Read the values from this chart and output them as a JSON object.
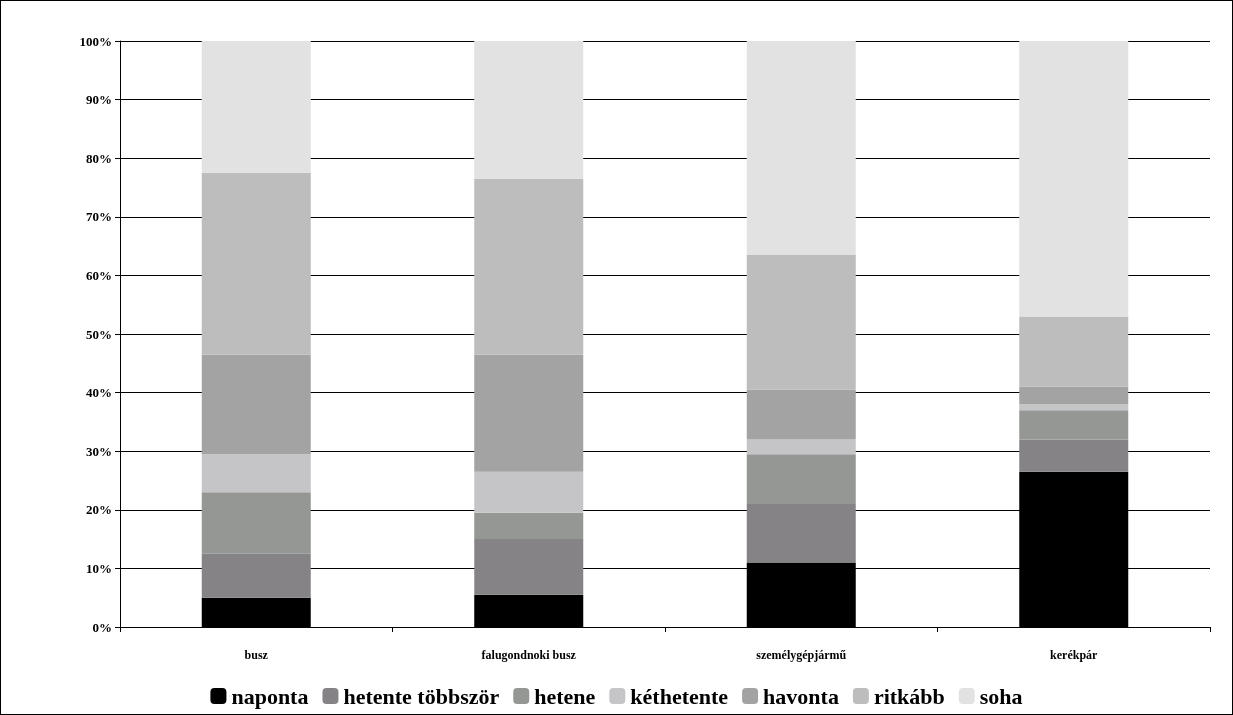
{
  "chart_data": {
    "type": "bar",
    "stacked": true,
    "categories": [
      "busz",
      "falugondnoki busz",
      "személygépjármű",
      "kerékpár"
    ],
    "series": [
      {
        "name": "naponta",
        "color": "#000000",
        "values": [
          5,
          5.5,
          11,
          26.5
        ]
      },
      {
        "name": "hetente többször",
        "color": "#858386",
        "values": [
          7.5,
          9.5,
          10,
          5.5
        ]
      },
      {
        "name": "hetene",
        "color": "#959794",
        "values": [
          10.5,
          4.5,
          8.5,
          5
        ]
      },
      {
        "name": "kéthetente",
        "color": "#c5c4c6",
        "values": [
          6.5,
          7,
          2.5,
          1
        ]
      },
      {
        "name": "havonta",
        "color": "#a3a3a3",
        "values": [
          17,
          20,
          8.5,
          3
        ]
      },
      {
        "name": "ritkább",
        "color": "#bdbdbd",
        "values": [
          31,
          30,
          23,
          12
        ]
      },
      {
        "name": "soha",
        "color": "#e2e2e2",
        "values": [
          22.5,
          23.5,
          36.5,
          47
        ]
      }
    ],
    "ylim": [
      0,
      100
    ],
    "yticks": [
      {
        "value": 0,
        "label": "0%"
      },
      {
        "value": 10,
        "label": "10%"
      },
      {
        "value": 20,
        "label": "20%"
      },
      {
        "value": 30,
        "label": "30%"
      },
      {
        "value": 40,
        "label": "40%"
      },
      {
        "value": 50,
        "label": "50%"
      },
      {
        "value": 60,
        "label": "60%"
      },
      {
        "value": 70,
        "label": "70%"
      },
      {
        "value": 80,
        "label": "80%"
      },
      {
        "value": 90,
        "label": "90%"
      },
      {
        "value": 100,
        "label": "100%"
      }
    ],
    "grid": "y",
    "legend": "bottom"
  }
}
